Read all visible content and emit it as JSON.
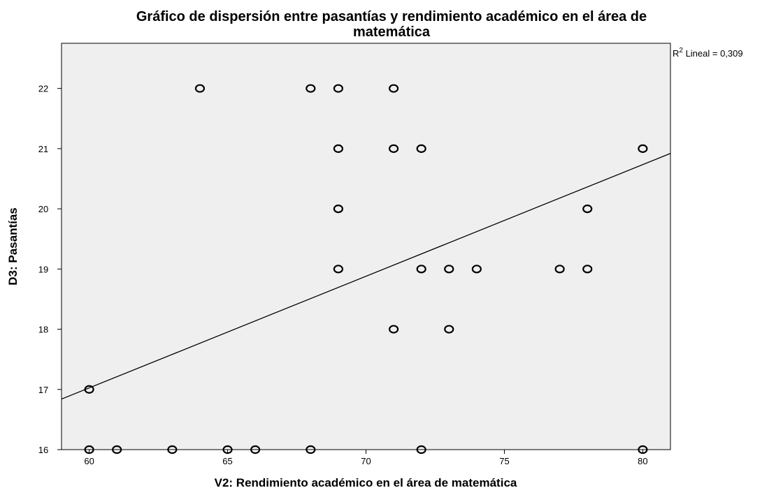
{
  "chart_data": {
    "type": "scatter",
    "title_line1": "Gráfico de dispersión entre pasantías y rendimiento académico en el área de",
    "title_line2": "matemática",
    "xlabel": "V2: Rendimiento académico en el área de matemática",
    "ylabel": "D3: Pasantías",
    "xlim": [
      59,
      81
    ],
    "ylim": [
      16,
      22.75
    ],
    "x_ticks": [
      "60",
      "65",
      "70",
      "75",
      "80"
    ],
    "y_ticks": [
      "16",
      "17",
      "18",
      "19",
      "20",
      "21",
      "22"
    ],
    "grid": false,
    "plot_background": "#efefef",
    "point_style": "hollow-circle",
    "points": [
      {
        "x": 64,
        "y": 22
      },
      {
        "x": 68,
        "y": 22
      },
      {
        "x": 69,
        "y": 22
      },
      {
        "x": 71,
        "y": 22
      },
      {
        "x": 69,
        "y": 21
      },
      {
        "x": 71,
        "y": 21
      },
      {
        "x": 72,
        "y": 21
      },
      {
        "x": 80,
        "y": 21
      },
      {
        "x": 69,
        "y": 20
      },
      {
        "x": 78,
        "y": 20
      },
      {
        "x": 69,
        "y": 19
      },
      {
        "x": 72,
        "y": 19
      },
      {
        "x": 73,
        "y": 19
      },
      {
        "x": 74,
        "y": 19
      },
      {
        "x": 77,
        "y": 19
      },
      {
        "x": 78,
        "y": 19
      },
      {
        "x": 71,
        "y": 18
      },
      {
        "x": 73,
        "y": 18
      },
      {
        "x": 60,
        "y": 17
      },
      {
        "x": 60,
        "y": 16
      },
      {
        "x": 61,
        "y": 16
      },
      {
        "x": 63,
        "y": 16
      },
      {
        "x": 65,
        "y": 16
      },
      {
        "x": 66,
        "y": 16
      },
      {
        "x": 68,
        "y": 16
      },
      {
        "x": 72,
        "y": 16
      },
      {
        "x": 80,
        "y": 16
      }
    ],
    "fit_line": {
      "type": "linear",
      "x": [
        59,
        81
      ],
      "y": [
        16.84,
        20.92
      ]
    },
    "annotation": {
      "r_label": "R",
      "r_superscript": "2",
      "r_rest": " Lineal = 0,309"
    }
  }
}
